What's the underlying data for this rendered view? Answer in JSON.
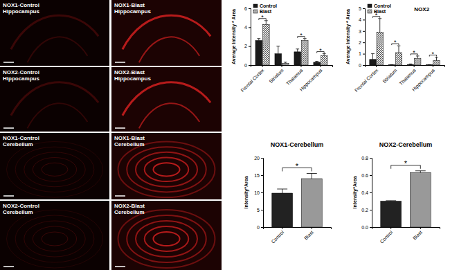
{
  "panels": [
    {
      "lines": [
        "NOX1-Control",
        "Hippocampus"
      ]
    },
    {
      "lines": [
        "NOX1-Blast",
        "Hippocampus"
      ]
    },
    {
      "lines": [
        "NOX2-Control",
        "Hippocampus"
      ]
    },
    {
      "lines": [
        "NOX2-Blast",
        "Hippocampus"
      ]
    },
    {
      "lines": [
        "NOX1-Control",
        "Cerebellum"
      ]
    },
    {
      "lines": [
        "NOX1-Blast",
        "Cerebellum"
      ]
    },
    {
      "lines": [
        "NOX2-Control",
        "Cerebellum"
      ]
    },
    {
      "lines": [
        "NOX2-Blast",
        "Cerebellum"
      ]
    }
  ],
  "chart_data": [
    {
      "type": "bar",
      "categories": [
        "Frontal Cortex",
        "Striatum",
        "Thalamus",
        "Hippocampus"
      ],
      "series": [
        {
          "name": "Control",
          "color": "#1a1a1a",
          "values": [
            2.6,
            1.2,
            1.4,
            0.3
          ],
          "errors": [
            0.2,
            0.8,
            0.3,
            0.1
          ]
        },
        {
          "name": "Blast",
          "color": "#555555",
          "values": [
            4.3,
            0.2,
            2.6,
            1.0
          ],
          "errors": [
            0.4,
            0.1,
            0.2,
            0.2
          ]
        }
      ],
      "y_label": "Average Intensity * Area",
      "ylim": [
        0,
        6
      ],
      "yticks": [
        0,
        2,
        4,
        6
      ],
      "legend": "upper left",
      "annotations": [
        {
          "text": "*",
          "category": "Frontal Cortex"
        },
        {
          "text": "*",
          "category": "Thalamus"
        },
        {
          "text": "*",
          "category": "Hippocampus"
        }
      ]
    },
    {
      "type": "bar",
      "title": "NOX2",
      "categories": [
        "Frontal Cortex",
        "Striatum",
        "Thalamus",
        "Hippocampus"
      ],
      "series": [
        {
          "name": "Control",
          "color": "#1a1a1a",
          "values": [
            0.5,
            0.02,
            0.05,
            0.02
          ],
          "errors": [
            0.5,
            0.02,
            0.05,
            0.02
          ]
        },
        {
          "name": "Blast",
          "color": "#555555",
          "values": [
            2.9,
            1.1,
            0.6,
            0.4
          ],
          "errors": [
            1.2,
            0.6,
            0.2,
            0.3
          ]
        }
      ],
      "y_label": "Average Intensity * Area",
      "ylim": [
        0,
        5
      ],
      "yticks": [
        0,
        1,
        2,
        3,
        4,
        5
      ],
      "legend": "upper left",
      "annotations": [
        {
          "text": "*",
          "category": "Frontal Cortex"
        },
        {
          "text": "*",
          "category": "Striatum"
        },
        {
          "text": "*",
          "category": "Thalamus"
        },
        {
          "text": "*",
          "category": "Hippocampus"
        }
      ]
    },
    {
      "type": "bar",
      "title": "NOX1-Cerebellum",
      "categories": [
        "Control",
        "Blast"
      ],
      "values": [
        9.8,
        14
      ],
      "errors": [
        1.2,
        1.5
      ],
      "colors": [
        "#222222",
        "#999999"
      ],
      "y_label": "Intensity*Area",
      "ylim": [
        0,
        20
      ],
      "yticks": [
        0,
        5,
        10,
        15,
        20
      ],
      "annotations": [
        {
          "text": "*",
          "categories": [
            "Control",
            "Blast"
          ]
        }
      ]
    },
    {
      "type": "bar",
      "title": "NOX2-Cerebellum",
      "categories": [
        "Control",
        "Blast"
      ],
      "values": [
        0.3,
        0.63
      ],
      "errors": [
        0.005,
        0.02
      ],
      "colors": [
        "#222222",
        "#999999"
      ],
      "y_label": "Intensity*Area",
      "ylim": [
        0,
        0.8
      ],
      "yticks": [
        {
          "value": 0,
          "label": "0.0"
        },
        0.2,
        0.4,
        0.6,
        0.8
      ],
      "annotations": [
        {
          "text": "*",
          "categories": [
            "Control",
            "Blast"
          ]
        }
      ]
    }
  ]
}
